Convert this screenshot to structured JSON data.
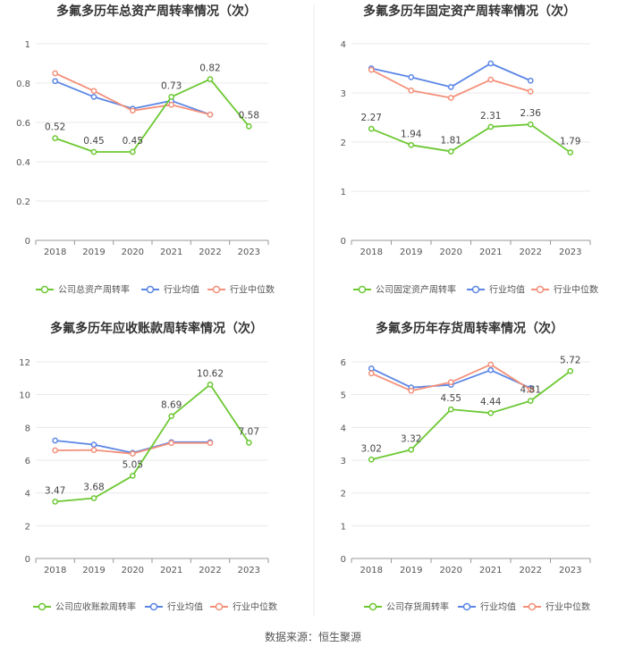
{
  "source": "数据来源：恒生聚源",
  "colors": {
    "company": "#6cc832",
    "avg": "#5b86e5",
    "median": "#f4907a",
    "grid": "#e8e8e8",
    "axis": "#999999",
    "text": "#555555",
    "title": "#333333"
  },
  "chart_data": [
    {
      "type": "line",
      "title": "多氟多历年总资产周转率情况（次）",
      "categories": [
        "2018",
        "2019",
        "2020",
        "2021",
        "2022",
        "2023"
      ],
      "ylim": [
        0,
        1
      ],
      "yticks": [
        "0",
        "0.2",
        "0.4",
        "0.6",
        "0.8",
        "1"
      ],
      "series": [
        {
          "name": "公司总资产周转率",
          "key": "company",
          "values": [
            0.52,
            0.45,
            0.45,
            0.73,
            0.82,
            0.58
          ],
          "labels": [
            "0.52",
            "0.45",
            "0.45",
            "0.73",
            "0.82",
            "0.58"
          ]
        },
        {
          "name": "行业均值",
          "key": "avg",
          "values": [
            0.81,
            0.73,
            0.67,
            0.71,
            0.64,
            null
          ]
        },
        {
          "name": "行业中位数",
          "key": "median",
          "values": [
            0.85,
            0.76,
            0.66,
            0.69,
            0.64,
            null
          ]
        }
      ]
    },
    {
      "type": "line",
      "title": "多氟多历年固定资产周转率情况（次）",
      "categories": [
        "2018",
        "2019",
        "2020",
        "2021",
        "2022",
        "2023"
      ],
      "ylim": [
        0,
        4
      ],
      "yticks": [
        "0",
        "1",
        "2",
        "3",
        "4"
      ],
      "series": [
        {
          "name": "公司固定资产周转率",
          "key": "company",
          "values": [
            2.27,
            1.94,
            1.81,
            2.31,
            2.36,
            1.79
          ],
          "labels": [
            "2.27",
            "1.94",
            "1.81",
            "2.31",
            "2.36",
            "1.79"
          ]
        },
        {
          "name": "行业均值",
          "key": "avg",
          "values": [
            3.5,
            3.32,
            3.12,
            3.6,
            3.25,
            null
          ]
        },
        {
          "name": "行业中位数",
          "key": "median",
          "values": [
            3.47,
            3.05,
            2.9,
            3.27,
            3.03,
            null
          ]
        }
      ]
    },
    {
      "type": "line",
      "title": "多氟多历年应收账款周转率情况（次）",
      "categories": [
        "2018",
        "2019",
        "2020",
        "2021",
        "2022",
        "2023"
      ],
      "ylim": [
        0,
        12
      ],
      "yticks": [
        "0",
        "2",
        "4",
        "6",
        "8",
        "10",
        "12"
      ],
      "series": [
        {
          "name": "公司应收账款周转率",
          "key": "company",
          "values": [
            3.47,
            3.68,
            5.05,
            8.69,
            10.62,
            7.07
          ],
          "labels": [
            "3.47",
            "3.68",
            "5.05",
            "8.69",
            "10.62",
            "7.07"
          ]
        },
        {
          "name": "行业均值",
          "key": "avg",
          "values": [
            7.2,
            6.95,
            6.45,
            7.1,
            7.1,
            null
          ]
        },
        {
          "name": "行业中位数",
          "key": "median",
          "values": [
            6.6,
            6.62,
            6.4,
            7.05,
            7.05,
            null
          ]
        }
      ]
    },
    {
      "type": "line",
      "title": "多氟多历年存货周转率情况（次）",
      "categories": [
        "2018",
        "2019",
        "2020",
        "2021",
        "2022",
        "2023"
      ],
      "ylim": [
        0,
        6
      ],
      "yticks": [
        "0",
        "1",
        "2",
        "3",
        "4",
        "5",
        "6"
      ],
      "series": [
        {
          "name": "公司存货周转率",
          "key": "company",
          "values": [
            3.02,
            3.32,
            4.55,
            4.44,
            4.81,
            5.72
          ],
          "labels": [
            "3.02",
            "3.32",
            "4.55",
            "4.44",
            "4.81",
            "5.72"
          ]
        },
        {
          "name": "行业均值",
          "key": "avg",
          "values": [
            5.8,
            5.22,
            5.3,
            5.75,
            5.2,
            null
          ]
        },
        {
          "name": "行业中位数",
          "key": "median",
          "values": [
            5.65,
            5.12,
            5.38,
            5.92,
            5.15,
            null
          ]
        }
      ]
    }
  ]
}
